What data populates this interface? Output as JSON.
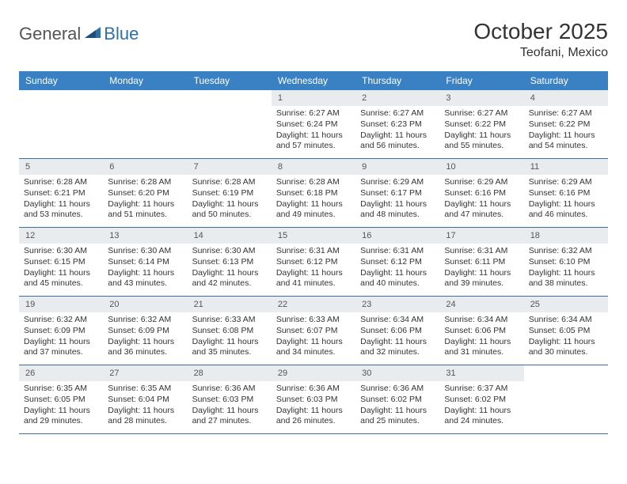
{
  "logo": {
    "left": "General",
    "right": "Blue"
  },
  "title": "October 2025",
  "location": "Teofani, Mexico",
  "colors": {
    "header_bg": "#3a81c4",
    "header_text": "#ffffff",
    "daynum_bg": "#e9ecef",
    "border": "#3a6fa0",
    "logo_blue": "#2f6fa8"
  },
  "dow": [
    "Sunday",
    "Monday",
    "Tuesday",
    "Wednesday",
    "Thursday",
    "Friday",
    "Saturday"
  ],
  "weeks": [
    [
      {
        "n": "",
        "empty": true
      },
      {
        "n": "",
        "empty": true
      },
      {
        "n": "",
        "empty": true
      },
      {
        "n": "1",
        "sr": "6:27 AM",
        "ss": "6:24 PM",
        "dl": "11 hours and 57 minutes."
      },
      {
        "n": "2",
        "sr": "6:27 AM",
        "ss": "6:23 PM",
        "dl": "11 hours and 56 minutes."
      },
      {
        "n": "3",
        "sr": "6:27 AM",
        "ss": "6:22 PM",
        "dl": "11 hours and 55 minutes."
      },
      {
        "n": "4",
        "sr": "6:27 AM",
        "ss": "6:22 PM",
        "dl": "11 hours and 54 minutes."
      }
    ],
    [
      {
        "n": "5",
        "sr": "6:28 AM",
        "ss": "6:21 PM",
        "dl": "11 hours and 53 minutes."
      },
      {
        "n": "6",
        "sr": "6:28 AM",
        "ss": "6:20 PM",
        "dl": "11 hours and 51 minutes."
      },
      {
        "n": "7",
        "sr": "6:28 AM",
        "ss": "6:19 PM",
        "dl": "11 hours and 50 minutes."
      },
      {
        "n": "8",
        "sr": "6:28 AM",
        "ss": "6:18 PM",
        "dl": "11 hours and 49 minutes."
      },
      {
        "n": "9",
        "sr": "6:29 AM",
        "ss": "6:17 PM",
        "dl": "11 hours and 48 minutes."
      },
      {
        "n": "10",
        "sr": "6:29 AM",
        "ss": "6:16 PM",
        "dl": "11 hours and 47 minutes."
      },
      {
        "n": "11",
        "sr": "6:29 AM",
        "ss": "6:16 PM",
        "dl": "11 hours and 46 minutes."
      }
    ],
    [
      {
        "n": "12",
        "sr": "6:30 AM",
        "ss": "6:15 PM",
        "dl": "11 hours and 45 minutes."
      },
      {
        "n": "13",
        "sr": "6:30 AM",
        "ss": "6:14 PM",
        "dl": "11 hours and 43 minutes."
      },
      {
        "n": "14",
        "sr": "6:30 AM",
        "ss": "6:13 PM",
        "dl": "11 hours and 42 minutes."
      },
      {
        "n": "15",
        "sr": "6:31 AM",
        "ss": "6:12 PM",
        "dl": "11 hours and 41 minutes."
      },
      {
        "n": "16",
        "sr": "6:31 AM",
        "ss": "6:12 PM",
        "dl": "11 hours and 40 minutes."
      },
      {
        "n": "17",
        "sr": "6:31 AM",
        "ss": "6:11 PM",
        "dl": "11 hours and 39 minutes."
      },
      {
        "n": "18",
        "sr": "6:32 AM",
        "ss": "6:10 PM",
        "dl": "11 hours and 38 minutes."
      }
    ],
    [
      {
        "n": "19",
        "sr": "6:32 AM",
        "ss": "6:09 PM",
        "dl": "11 hours and 37 minutes."
      },
      {
        "n": "20",
        "sr": "6:32 AM",
        "ss": "6:09 PM",
        "dl": "11 hours and 36 minutes."
      },
      {
        "n": "21",
        "sr": "6:33 AM",
        "ss": "6:08 PM",
        "dl": "11 hours and 35 minutes."
      },
      {
        "n": "22",
        "sr": "6:33 AM",
        "ss": "6:07 PM",
        "dl": "11 hours and 34 minutes."
      },
      {
        "n": "23",
        "sr": "6:34 AM",
        "ss": "6:06 PM",
        "dl": "11 hours and 32 minutes."
      },
      {
        "n": "24",
        "sr": "6:34 AM",
        "ss": "6:06 PM",
        "dl": "11 hours and 31 minutes."
      },
      {
        "n": "25",
        "sr": "6:34 AM",
        "ss": "6:05 PM",
        "dl": "11 hours and 30 minutes."
      }
    ],
    [
      {
        "n": "26",
        "sr": "6:35 AM",
        "ss": "6:05 PM",
        "dl": "11 hours and 29 minutes."
      },
      {
        "n": "27",
        "sr": "6:35 AM",
        "ss": "6:04 PM",
        "dl": "11 hours and 28 minutes."
      },
      {
        "n": "28",
        "sr": "6:36 AM",
        "ss": "6:03 PM",
        "dl": "11 hours and 27 minutes."
      },
      {
        "n": "29",
        "sr": "6:36 AM",
        "ss": "6:03 PM",
        "dl": "11 hours and 26 minutes."
      },
      {
        "n": "30",
        "sr": "6:36 AM",
        "ss": "6:02 PM",
        "dl": "11 hours and 25 minutes."
      },
      {
        "n": "31",
        "sr": "6:37 AM",
        "ss": "6:02 PM",
        "dl": "11 hours and 24 minutes."
      },
      {
        "n": "",
        "empty": true
      }
    ]
  ],
  "labels": {
    "sunrise": "Sunrise:",
    "sunset": "Sunset:",
    "daylight": "Daylight:"
  }
}
